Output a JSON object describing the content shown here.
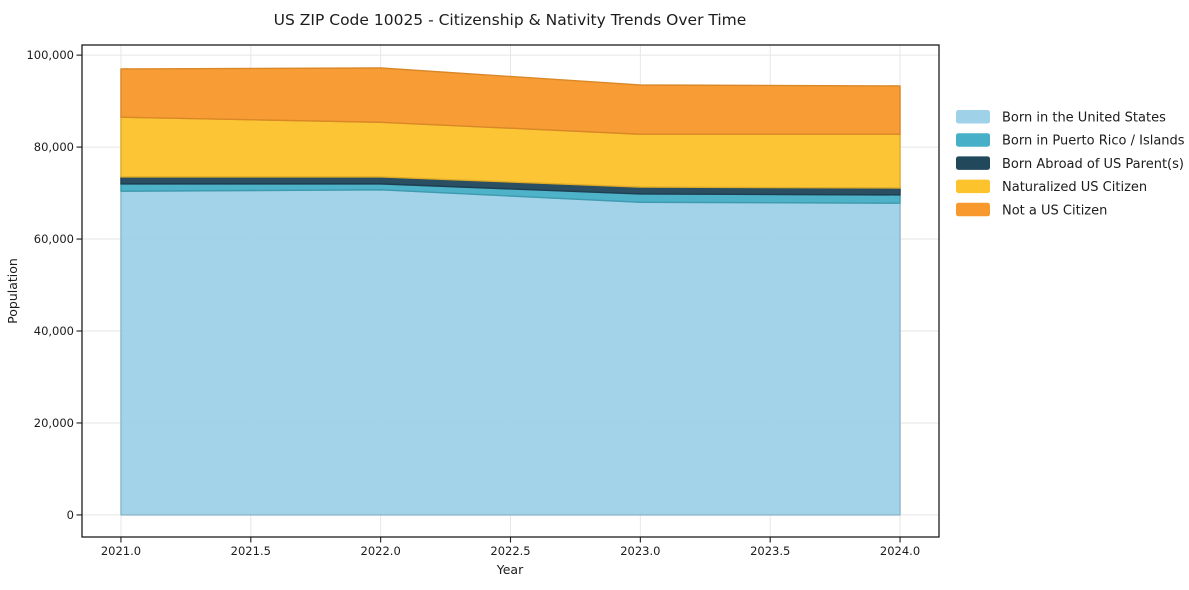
{
  "chart_data": {
    "type": "area",
    "stacked": true,
    "title": "US ZIP Code 10025 - Citizenship & Nativity Trends Over Time",
    "xlabel": "Year",
    "ylabel": "Population",
    "x": [
      2021,
      2022,
      2023,
      2024
    ],
    "series": [
      {
        "name": "Born in the United States",
        "color": "#9FD1E8",
        "values": [
          70400,
          70700,
          68000,
          67800
        ]
      },
      {
        "name": "Born in Puerto Rico / Islands",
        "color": "#47AFC7",
        "values": [
          1600,
          1300,
          1800,
          1800
        ]
      },
      {
        "name": "Born Abroad of US Parent(s)",
        "color": "#22485C",
        "values": [
          1500,
          1500,
          1500,
          1500
        ]
      },
      {
        "name": "Naturalized US Citizen",
        "color": "#FCC32D",
        "values": [
          13000,
          11900,
          11500,
          11700
        ]
      },
      {
        "name": "Not a US Citizen",
        "color": "#F8992D",
        "values": [
          10500,
          11800,
          10700,
          10500
        ]
      }
    ],
    "xlim": [
      2020.85,
      2024.15
    ],
    "ylim": [
      -4800,
      102200
    ],
    "xticks": {
      "values": [
        2021,
        2021.5,
        2022,
        2022.5,
        2023,
        2023.5,
        2024
      ],
      "labels": [
        "2021.0",
        "2021.5",
        "2022.0",
        "2022.5",
        "2023.0",
        "2023.5",
        "2024.0"
      ]
    },
    "yticks": {
      "values": [
        0,
        20000,
        40000,
        60000,
        80000,
        100000
      ],
      "labels": [
        "0",
        "20,000",
        "40,000",
        "60,000",
        "80,000",
        "100,000"
      ]
    },
    "grid": true,
    "legend_position": "right-outside-top",
    "colors": {
      "grid": "#e6e6e6",
      "spine": "#1c1c1c",
      "text": "#1c1c1c",
      "background": "#ffffff"
    }
  }
}
